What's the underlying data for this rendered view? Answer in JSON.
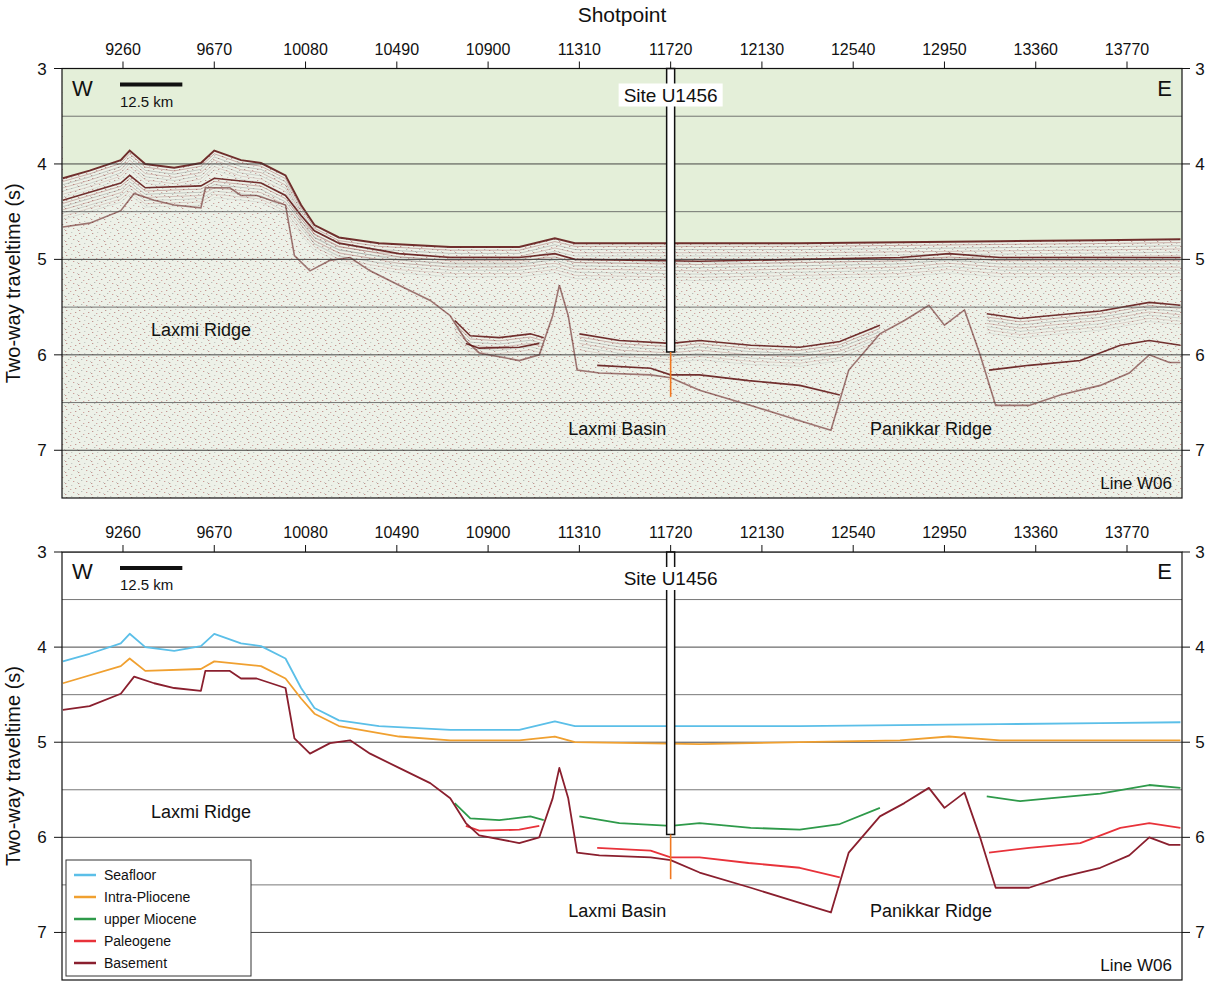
{
  "chart_data": {
    "type": "line",
    "x_label": "Shotpoint",
    "y_label": "Two-way traveltime (s)",
    "xlim": [
      8986,
      14017
    ],
    "xticks": [
      9260,
      9670,
      10080,
      10490,
      10900,
      11310,
      11720,
      12130,
      12540,
      12950,
      13360,
      13770
    ],
    "ylim": [
      3,
      7.5
    ],
    "yticks": [
      3,
      4,
      5,
      6,
      7
    ],
    "grid": true,
    "legend": "lower left",
    "series": [
      {
        "name": "Seafloor",
        "color": "#5bbfe8",
        "x": [
          8990,
          9110,
          9250,
          9290,
          9360,
          9490,
          9610,
          9670,
          9790,
          9880,
          9990,
          10060,
          10120,
          10230,
          10410,
          10730,
          11040,
          11200,
          11290,
          11490,
          11850,
          12300,
          12750,
          13200,
          13650,
          14010
        ],
        "values": [
          4.15,
          4.07,
          3.96,
          3.86,
          4.0,
          4.04,
          3.99,
          3.86,
          3.96,
          3.99,
          4.12,
          4.43,
          4.64,
          4.77,
          4.83,
          4.87,
          4.87,
          4.78,
          4.83,
          4.83,
          4.83,
          4.83,
          4.82,
          4.81,
          4.8,
          4.79
        ]
      },
      {
        "name": "Intra-Pliocene",
        "color": "#f0a030",
        "x": [
          8990,
          9250,
          9290,
          9360,
          9610,
          9670,
          9880,
          9990,
          10060,
          10120,
          10230,
          10500,
          10730,
          11040,
          11200,
          11290,
          11850,
          12300,
          12750,
          12970,
          13200,
          13650,
          14010
        ],
        "values": [
          4.38,
          4.2,
          4.12,
          4.25,
          4.23,
          4.15,
          4.2,
          4.33,
          4.54,
          4.7,
          4.83,
          4.94,
          4.98,
          4.98,
          4.94,
          5.0,
          5.02,
          5.0,
          4.98,
          4.94,
          4.98,
          4.98,
          4.98
        ]
      },
      {
        "name": "upper Miocene",
        "color": "#2e9a4a",
        "x": [
          10750,
          10820,
          10950,
          11090,
          11150,
          11220,
          11310,
          11490,
          11720,
          11850,
          12080,
          12300,
          12480,
          12660,
          12880,
          13140,
          13290,
          13420,
          13650,
          13870,
          14010
        ],
        "values": [
          5.64,
          5.8,
          5.82,
          5.78,
          5.82,
          null,
          5.78,
          5.85,
          5.88,
          5.85,
          5.9,
          5.92,
          5.86,
          5.69,
          null,
          5.57,
          5.62,
          5.59,
          5.54,
          5.45,
          5.48
        ]
      },
      {
        "name": "Paleogene",
        "color": "#e8323a",
        "x": [
          10800,
          10860,
          11040,
          11130,
          11270,
          11390,
          11630,
          11720,
          11850,
          12070,
          12300,
          12480,
          12750,
          13150,
          13330,
          13560,
          13740,
          13870,
          14010
        ],
        "values": [
          5.88,
          5.93,
          5.92,
          5.88,
          null,
          6.11,
          6.14,
          6.21,
          6.21,
          6.27,
          6.32,
          6.42,
          null,
          6.16,
          6.11,
          6.06,
          5.9,
          5.85,
          5.9
        ]
      },
      {
        "name": "Basement",
        "color": "#8a1f2e",
        "x": [
          8990,
          9110,
          9250,
          9310,
          9400,
          9490,
          9610,
          9630,
          9740,
          9790,
          9860,
          9990,
          10030,
          10100,
          10190,
          10280,
          10370,
          10500,
          10640,
          10730,
          10800,
          10860,
          11040,
          11130,
          11190,
          11220,
          11260,
          11300,
          11400,
          11630,
          11720,
          11850,
          12080,
          12300,
          12440,
          12520,
          12660,
          12770,
          12880,
          12950,
          13040,
          13110,
          13180,
          13330,
          13470,
          13650,
          13780,
          13870,
          13960,
          14010
        ],
        "values": [
          4.66,
          4.62,
          4.49,
          4.31,
          4.38,
          4.43,
          4.46,
          4.25,
          4.25,
          4.33,
          4.33,
          4.43,
          4.96,
          5.12,
          5.01,
          4.98,
          5.12,
          5.27,
          5.43,
          5.59,
          5.85,
          5.98,
          6.06,
          6.0,
          5.59,
          5.27,
          5.59,
          6.16,
          6.19,
          6.21,
          6.24,
          6.37,
          6.53,
          6.69,
          6.79,
          6.16,
          5.78,
          5.64,
          5.48,
          5.69,
          5.53,
          6.0,
          6.53,
          6.53,
          6.42,
          6.32,
          6.19,
          6.0,
          6.08,
          6.08
        ]
      }
    ],
    "borehole": {
      "label": "Site U1456",
      "x": 11720,
      "depth": 5.97,
      "projected_depth": 6.44
    },
    "annotations": [
      {
        "text": "Laxmi Ridge",
        "x": 9610,
        "y": 5.8
      },
      {
        "text": "Laxmi Basin",
        "x": 11480,
        "y": 6.84
      },
      {
        "text": "Panikkar Ridge",
        "x": 12890,
        "y": 6.84
      }
    ],
    "scale_bar": {
      "label": "12.5 km",
      "length": 280
    },
    "corner_labels": {
      "west": "W",
      "east": "E",
      "line": "Line W06"
    }
  }
}
